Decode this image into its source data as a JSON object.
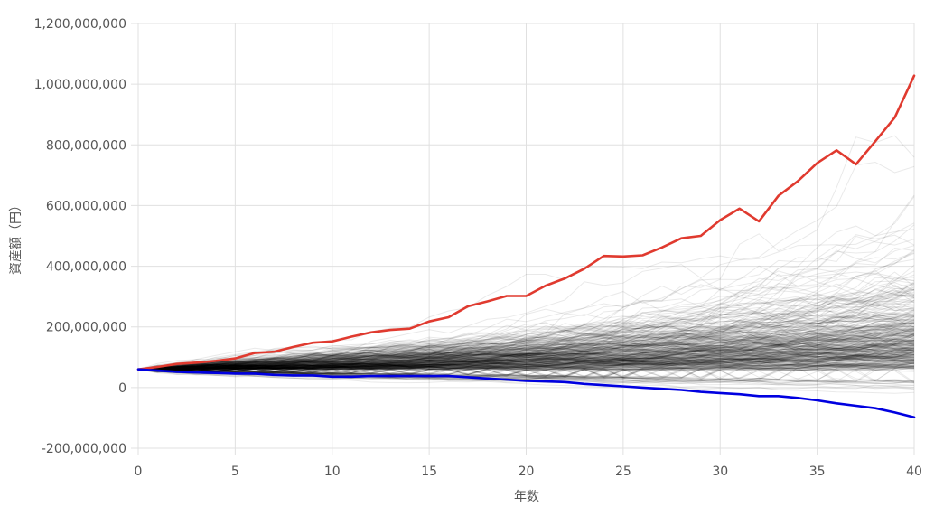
{
  "chart_data": {
    "type": "line",
    "xlabel": "年数",
    "ylabel": "資産額（円）",
    "xlim": [
      0,
      40
    ],
    "ylim": [
      -200000000,
      1200000000
    ],
    "x_ticks": [
      "0",
      "5",
      "10",
      "15",
      "20",
      "25",
      "30",
      "35",
      "40"
    ],
    "y_ticks": [
      "1,200,000,000",
      "1,000,000,000",
      "800,000,000",
      "600,000,000",
      "400,000,000",
      "200,000,000",
      "0",
      "-200,000,000"
    ],
    "grid": true,
    "legend": "none",
    "x": [
      0,
      1,
      2,
      3,
      4,
      5,
      6,
      7,
      8,
      9,
      10,
      11,
      12,
      13,
      14,
      15,
      16,
      17,
      18,
      19,
      20,
      21,
      22,
      23,
      24,
      25,
      26,
      27,
      28,
      29,
      30,
      31,
      32,
      33,
      34,
      35,
      36,
      37,
      38,
      39,
      40
    ],
    "series": [
      {
        "color": "#e03a2f",
        "values": [
          60000000,
          68000000,
          78000000,
          82000000,
          88000000,
          96000000,
          114000000,
          118000000,
          134000000,
          148000000,
          152000000,
          168000000,
          182000000,
          190000000,
          194000000,
          218000000,
          232000000,
          268000000,
          284000000,
          302000000,
          302000000,
          336000000,
          360000000,
          392000000,
          434000000,
          432000000,
          436000000,
          462000000,
          492000000,
          500000000,
          552000000,
          590000000,
          548000000,
          632000000,
          680000000,
          740000000,
          782000000,
          736000000,
          812000000,
          890000000,
          1028000000
        ]
      },
      {
        "color": "#0000e0",
        "values": [
          60000000,
          56000000,
          52000000,
          50000000,
          48000000,
          46000000,
          46000000,
          42000000,
          40000000,
          40000000,
          36000000,
          36000000,
          38000000,
          38000000,
          38000000,
          38000000,
          38000000,
          34000000,
          30000000,
          26000000,
          22000000,
          20000000,
          18000000,
          12000000,
          8000000,
          4000000,
          0,
          -4000000,
          -8000000,
          -14000000,
          -18000000,
          -22000000,
          -28000000,
          -28000000,
          -34000000,
          -42000000,
          -52000000,
          -60000000,
          -68000000,
          -82000000,
          -98000000
        ]
      }
    ],
    "simulation_paths": {
      "count": 400,
      "color": "#000000",
      "start": 60000000,
      "median_end": 150000000,
      "p1_end": -20000000,
      "p99_end": 640000000,
      "max_end": 830000000
    }
  }
}
